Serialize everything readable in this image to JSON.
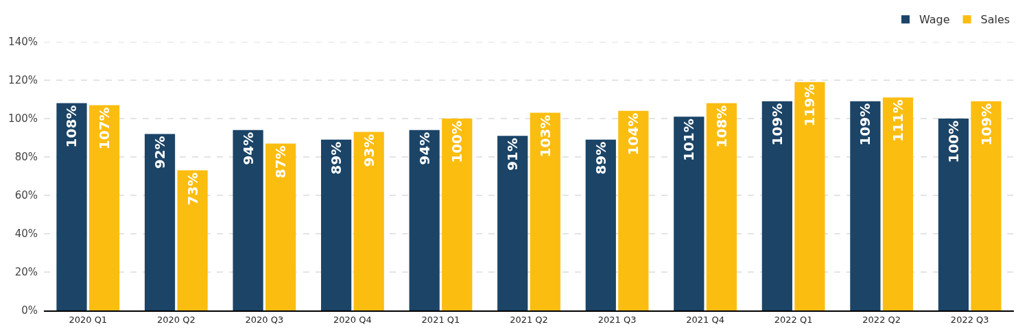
{
  "chart_data": {
    "type": "bar",
    "categories": [
      "2020 Q1",
      "2020 Q2",
      "2020 Q3",
      "2020 Q4",
      "2021 Q1",
      "2021 Q2",
      "2021 Q3",
      "2021 Q4",
      "2022 Q1",
      "2022 Q2",
      "2022 Q3"
    ],
    "series": [
      {
        "name": "Wage",
        "color": "#1b4467",
        "values": [
          108,
          92,
          94,
          89,
          94,
          91,
          89,
          101,
          109,
          109,
          100
        ],
        "value_labels": [
          "108%",
          "92%",
          "94%",
          "89%",
          "94%",
          "91%",
          "89%",
          "101%",
          "109%",
          "109%",
          "100%"
        ]
      },
      {
        "name": "Sales",
        "color": "#fcbd11",
        "values": [
          107,
          73,
          87,
          93,
          100,
          103,
          104,
          108,
          119,
          111,
          109
        ],
        "value_labels": [
          "107%",
          "73%",
          "87%",
          "93%",
          "100%",
          "103%",
          "104%",
          "108%",
          "119%",
          "111%",
          "109%"
        ]
      }
    ],
    "ylim": [
      0,
      140
    ],
    "yticks": [
      {
        "value": 0,
        "label": "0%"
      },
      {
        "value": 20,
        "label": "20%"
      },
      {
        "value": 40,
        "label": "40%"
      },
      {
        "value": 60,
        "label": "60%"
      },
      {
        "value": 80,
        "label": "80%"
      },
      {
        "value": 100,
        "label": "100%"
      },
      {
        "value": 120,
        "label": "120%"
      },
      {
        "value": 140,
        "label": "140%"
      }
    ],
    "grid": "y",
    "legend": "top right"
  }
}
